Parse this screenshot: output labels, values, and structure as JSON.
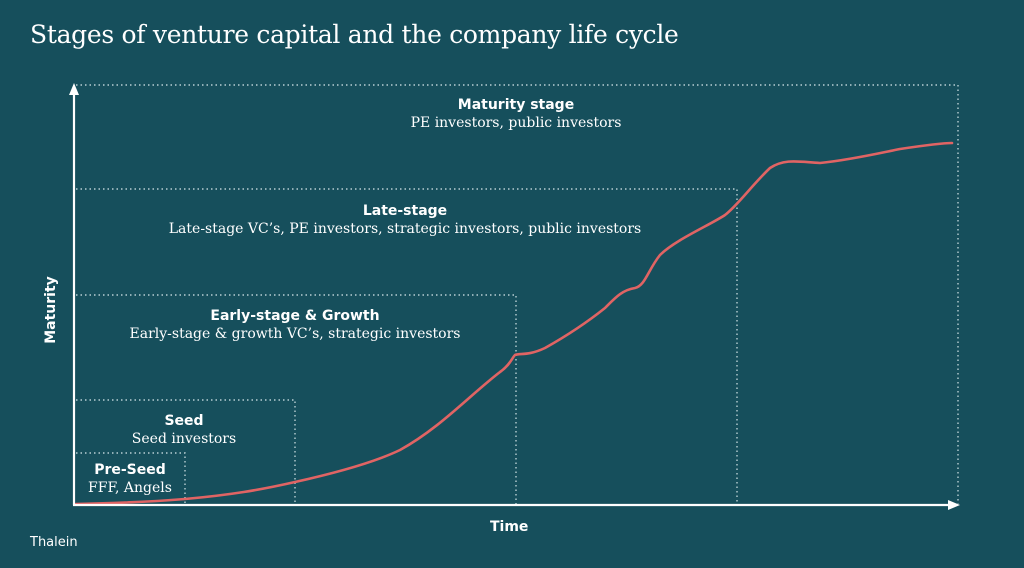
{
  "title": "Stages of venture capital and the company life cycle",
  "axes": {
    "x_label": "Time",
    "y_label": "Maturity"
  },
  "stages": [
    {
      "name": "Pre-Seed",
      "investors": "FFF, Angels"
    },
    {
      "name": "Seed",
      "investors": "Seed investors"
    },
    {
      "name": "Early-stage & Growth",
      "investors": "Early-stage & growth VC’s, strategic investors"
    },
    {
      "name": "Late-stage",
      "investors": "Late-stage VC’s, PE investors, strategic investors, public investors"
    },
    {
      "name": "Maturity stage",
      "investors": "PE investors, public investors"
    }
  ],
  "brand": "Thalein",
  "colors": {
    "background": "#164f5c",
    "curve": "#e06464",
    "axis": "#ffffff",
    "dotted": "#b9cfd3"
  }
}
